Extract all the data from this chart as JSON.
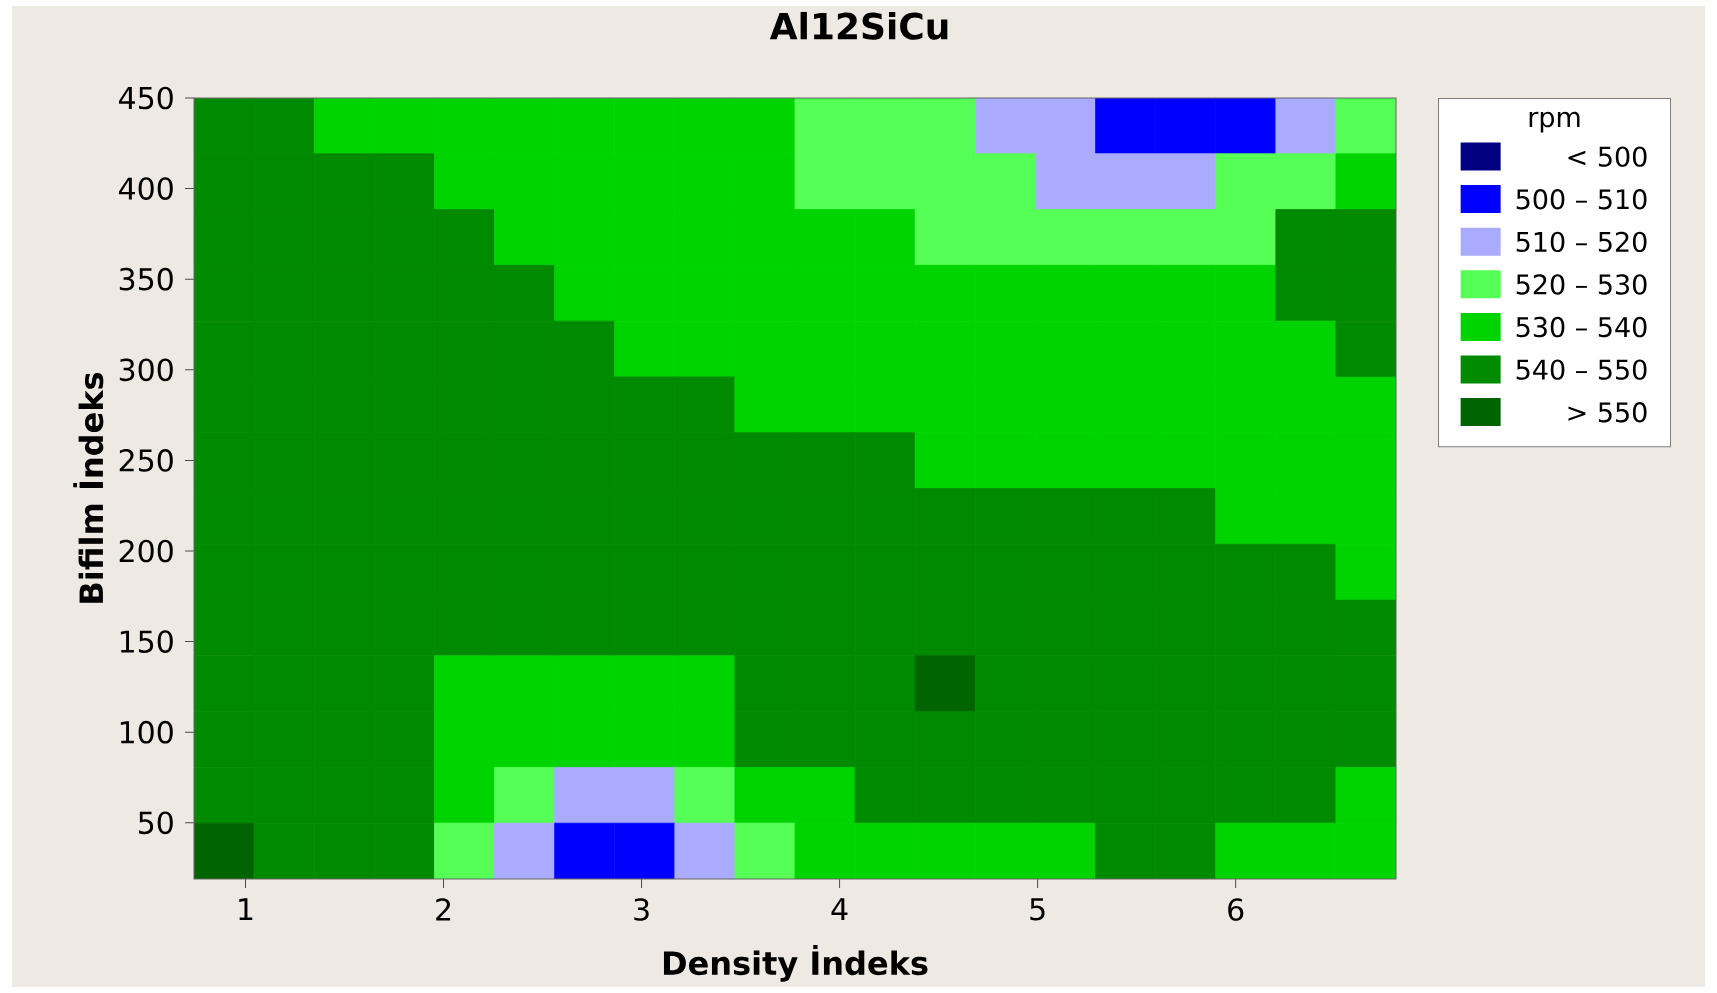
{
  "chart_data": {
    "type": "heatmap",
    "title": "Al12SiCu",
    "xlabel": "Density İndeks",
    "ylabel": "Bifilm İndeks",
    "legend_title": "rpm",
    "xlim": [
      0.74,
      6.81
    ],
    "ylim": [
      19,
      450
    ],
    "xticks": [
      1,
      2,
      3,
      4,
      5,
      6
    ],
    "yticks": [
      50,
      100,
      150,
      200,
      250,
      300,
      350,
      400,
      450
    ],
    "clim": [
      490,
      560
    ],
    "cticks": [
      {
        "value": 495,
        "label": "< 500"
      },
      {
        "value": 505,
        "label": "500 – 510"
      },
      {
        "value": 515,
        "label": "510 – 520"
      },
      {
        "value": 525,
        "label": "520 – 530"
      },
      {
        "value": 535,
        "label": "530 – 540"
      },
      {
        "value": 545,
        "label": "540 – 550"
      },
      {
        "value": 555,
        "label": "> 550"
      }
    ],
    "colors": [
      "#000080",
      "#0000ff",
      "#aaaaff",
      "#55ff55",
      "#00d400",
      "#008a00",
      "#006400"
    ],
    "cells": [
      [
        545,
        545,
        535,
        535,
        535,
        535,
        535,
        535,
        535,
        535,
        525,
        525,
        525,
        515,
        515,
        505,
        505,
        505,
        515,
        525
      ],
      [
        545,
        545,
        545,
        545,
        535,
        535,
        535,
        535,
        535,
        535,
        525,
        525,
        525,
        525,
        515,
        515,
        515,
        525,
        525,
        535
      ],
      [
        545,
        545,
        545,
        545,
        545,
        535,
        535,
        535,
        535,
        535,
        535,
        535,
        525,
        525,
        525,
        525,
        525,
        525,
        545,
        545
      ],
      [
        545,
        545,
        545,
        545,
        545,
        545,
        535,
        535,
        535,
        535,
        535,
        535,
        535,
        535,
        535,
        535,
        535,
        535,
        545,
        545
      ],
      [
        545,
        545,
        545,
        545,
        545,
        545,
        545,
        535,
        535,
        535,
        535,
        535,
        535,
        535,
        535,
        535,
        535,
        535,
        535,
        545
      ],
      [
        545,
        545,
        545,
        545,
        545,
        545,
        545,
        545,
        545,
        535,
        535,
        535,
        535,
        535,
        535,
        535,
        535,
        535,
        535,
        535
      ],
      [
        545,
        545,
        545,
        545,
        545,
        545,
        545,
        545,
        545,
        545,
        545,
        545,
        535,
        535,
        535,
        535,
        535,
        535,
        535,
        535
      ],
      [
        545,
        545,
        545,
        545,
        545,
        545,
        545,
        545,
        545,
        545,
        545,
        545,
        545,
        545,
        545,
        545,
        545,
        535,
        535,
        535
      ],
      [
        545,
        545,
        545,
        545,
        545,
        545,
        545,
        545,
        545,
        545,
        545,
        545,
        545,
        545,
        545,
        545,
        545,
        545,
        545,
        535
      ],
      [
        545,
        545,
        545,
        545,
        545,
        545,
        545,
        545,
        545,
        545,
        545,
        545,
        545,
        545,
        545,
        545,
        545,
        545,
        545,
        545
      ],
      [
        545,
        545,
        545,
        545,
        535,
        535,
        535,
        535,
        535,
        545,
        545,
        545,
        555,
        545,
        545,
        545,
        545,
        545,
        545,
        545
      ],
      [
        545,
        545,
        545,
        545,
        535,
        535,
        535,
        535,
        535,
        545,
        545,
        545,
        545,
        545,
        545,
        545,
        545,
        545,
        545,
        545
      ],
      [
        545,
        545,
        545,
        545,
        535,
        525,
        515,
        515,
        525,
        535,
        535,
        545,
        545,
        545,
        545,
        545,
        545,
        545,
        545,
        535
      ],
      [
        555,
        545,
        545,
        545,
        525,
        515,
        505,
        505,
        515,
        525,
        535,
        535,
        535,
        535,
        535,
        545,
        545,
        535,
        535,
        535
      ]
    ]
  }
}
